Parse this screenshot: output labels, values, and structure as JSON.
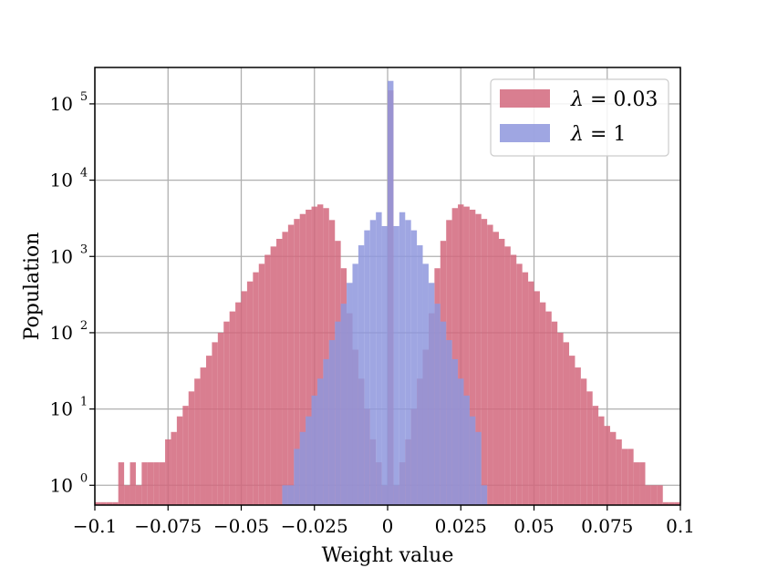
{
  "chart_data": {
    "type": "histogram",
    "xlabel": "Weight value",
    "ylabel": "Population",
    "xlim": [
      -0.1,
      0.1
    ],
    "y_scale": "log",
    "ylim": [
      0.55,
      300000
    ],
    "grid": true,
    "legend_position": "top-right",
    "x_ticks": [
      -0.1,
      -0.075,
      -0.05,
      -0.025,
      0,
      0.025,
      0.05,
      0.075,
      0.1
    ],
    "x_tick_labels": [
      "−0.1",
      "−0.075",
      "−0.05",
      "−0.025",
      "0",
      "0.025",
      "0.05",
      "0.075",
      "0.1"
    ],
    "y_ticks": [
      1,
      10,
      100,
      1000,
      10000,
      100000
    ],
    "y_tick_labels": [
      {
        "base": "10",
        "exp": "0"
      },
      {
        "base": "10",
        "exp": "1"
      },
      {
        "base": "10",
        "exp": "2"
      },
      {
        "base": "10",
        "exp": "3"
      },
      {
        "base": "10",
        "exp": "4"
      },
      {
        "base": "10",
        "exp": "5"
      }
    ],
    "bin_width": 0.002,
    "series": [
      {
        "name": "λ = 0.03",
        "legend_var": "λ",
        "legend_val": "= 0.03",
        "color": "#d2677c",
        "bins": [
          [
            -0.1,
            0.6
          ],
          [
            -0.098,
            0.6
          ],
          [
            -0.096,
            0.6
          ],
          [
            -0.094,
            0.6
          ],
          [
            -0.092,
            2
          ],
          [
            -0.09,
            1
          ],
          [
            -0.088,
            2
          ],
          [
            -0.086,
            1
          ],
          [
            -0.084,
            2
          ],
          [
            -0.082,
            2
          ],
          [
            -0.08,
            2
          ],
          [
            -0.078,
            2
          ],
          [
            -0.076,
            4
          ],
          [
            -0.074,
            5
          ],
          [
            -0.072,
            8
          ],
          [
            -0.07,
            11
          ],
          [
            -0.068,
            17
          ],
          [
            -0.066,
            25
          ],
          [
            -0.064,
            35
          ],
          [
            -0.062,
            50
          ],
          [
            -0.06,
            75
          ],
          [
            -0.058,
            100
          ],
          [
            -0.056,
            140
          ],
          [
            -0.054,
            190
          ],
          [
            -0.052,
            250
          ],
          [
            -0.05,
            350
          ],
          [
            -0.048,
            470
          ],
          [
            -0.046,
            620
          ],
          [
            -0.044,
            800
          ],
          [
            -0.042,
            1050
          ],
          [
            -0.04,
            1350
          ],
          [
            -0.038,
            1700
          ],
          [
            -0.036,
            2100
          ],
          [
            -0.034,
            2600
          ],
          [
            -0.032,
            3100
          ],
          [
            -0.03,
            3600
          ],
          [
            -0.028,
            4100
          ],
          [
            -0.026,
            4500
          ],
          [
            -0.024,
            4800
          ],
          [
            -0.022,
            4300
          ],
          [
            -0.02,
            3000
          ],
          [
            -0.018,
            1600
          ],
          [
            -0.016,
            700
          ],
          [
            -0.014,
            180
          ],
          [
            -0.012,
            60
          ],
          [
            -0.01,
            25
          ],
          [
            -0.008,
            10
          ],
          [
            -0.006,
            4
          ],
          [
            -0.004,
            2
          ],
          [
            -0.002,
            1
          ],
          [
            0.0,
            150000
          ],
          [
            0.002,
            1
          ],
          [
            0.004,
            2
          ],
          [
            0.006,
            4
          ],
          [
            0.008,
            10
          ],
          [
            0.01,
            25
          ],
          [
            0.012,
            60
          ],
          [
            0.014,
            180
          ],
          [
            0.016,
            700
          ],
          [
            0.018,
            1600
          ],
          [
            0.02,
            3000
          ],
          [
            0.022,
            4300
          ],
          [
            0.024,
            4800
          ],
          [
            0.026,
            4500
          ],
          [
            0.028,
            4100
          ],
          [
            0.03,
            3600
          ],
          [
            0.032,
            3100
          ],
          [
            0.034,
            2600
          ],
          [
            0.036,
            2100
          ],
          [
            0.038,
            1700
          ],
          [
            0.04,
            1350
          ],
          [
            0.042,
            1050
          ],
          [
            0.044,
            800
          ],
          [
            0.046,
            620
          ],
          [
            0.048,
            470
          ],
          [
            0.05,
            350
          ],
          [
            0.052,
            250
          ],
          [
            0.054,
            190
          ],
          [
            0.056,
            140
          ],
          [
            0.058,
            100
          ],
          [
            0.06,
            75
          ],
          [
            0.062,
            50
          ],
          [
            0.064,
            35
          ],
          [
            0.066,
            25
          ],
          [
            0.068,
            17
          ],
          [
            0.07,
            11
          ],
          [
            0.072,
            8
          ],
          [
            0.074,
            6
          ],
          [
            0.076,
            5
          ],
          [
            0.078,
            4
          ],
          [
            0.08,
            3
          ],
          [
            0.082,
            3
          ],
          [
            0.084,
            2
          ],
          [
            0.086,
            2
          ],
          [
            0.088,
            1
          ],
          [
            0.09,
            1
          ],
          [
            0.092,
            1
          ],
          [
            0.094,
            0.6
          ],
          [
            0.096,
            0.6
          ],
          [
            0.098,
            0.6
          ]
        ]
      },
      {
        "name": "λ = 1",
        "legend_var": "λ",
        "legend_val": "= 1",
        "color": "#8e97dd",
        "bins": [
          [
            -0.036,
            1
          ],
          [
            -0.034,
            1
          ],
          [
            -0.032,
            3
          ],
          [
            -0.03,
            5
          ],
          [
            -0.028,
            8
          ],
          [
            -0.026,
            15
          ],
          [
            -0.024,
            25
          ],
          [
            -0.022,
            45
          ],
          [
            -0.02,
            80
          ],
          [
            -0.018,
            140
          ],
          [
            -0.016,
            240
          ],
          [
            -0.014,
            450
          ],
          [
            -0.012,
            800
          ],
          [
            -0.01,
            1400
          ],
          [
            -0.008,
            2200
          ],
          [
            -0.006,
            3000
          ],
          [
            -0.004,
            3800
          ],
          [
            -0.002,
            2500
          ],
          [
            0.0,
            200000
          ],
          [
            0.002,
            2500
          ],
          [
            0.004,
            3800
          ],
          [
            0.006,
            3000
          ],
          [
            0.008,
            2200
          ],
          [
            0.01,
            1400
          ],
          [
            0.012,
            800
          ],
          [
            0.014,
            450
          ],
          [
            0.016,
            240
          ],
          [
            0.018,
            140
          ],
          [
            0.02,
            80
          ],
          [
            0.022,
            45
          ],
          [
            0.024,
            25
          ],
          [
            0.026,
            15
          ],
          [
            0.028,
            8
          ],
          [
            0.03,
            5
          ],
          [
            0.032,
            1
          ]
        ]
      }
    ]
  }
}
